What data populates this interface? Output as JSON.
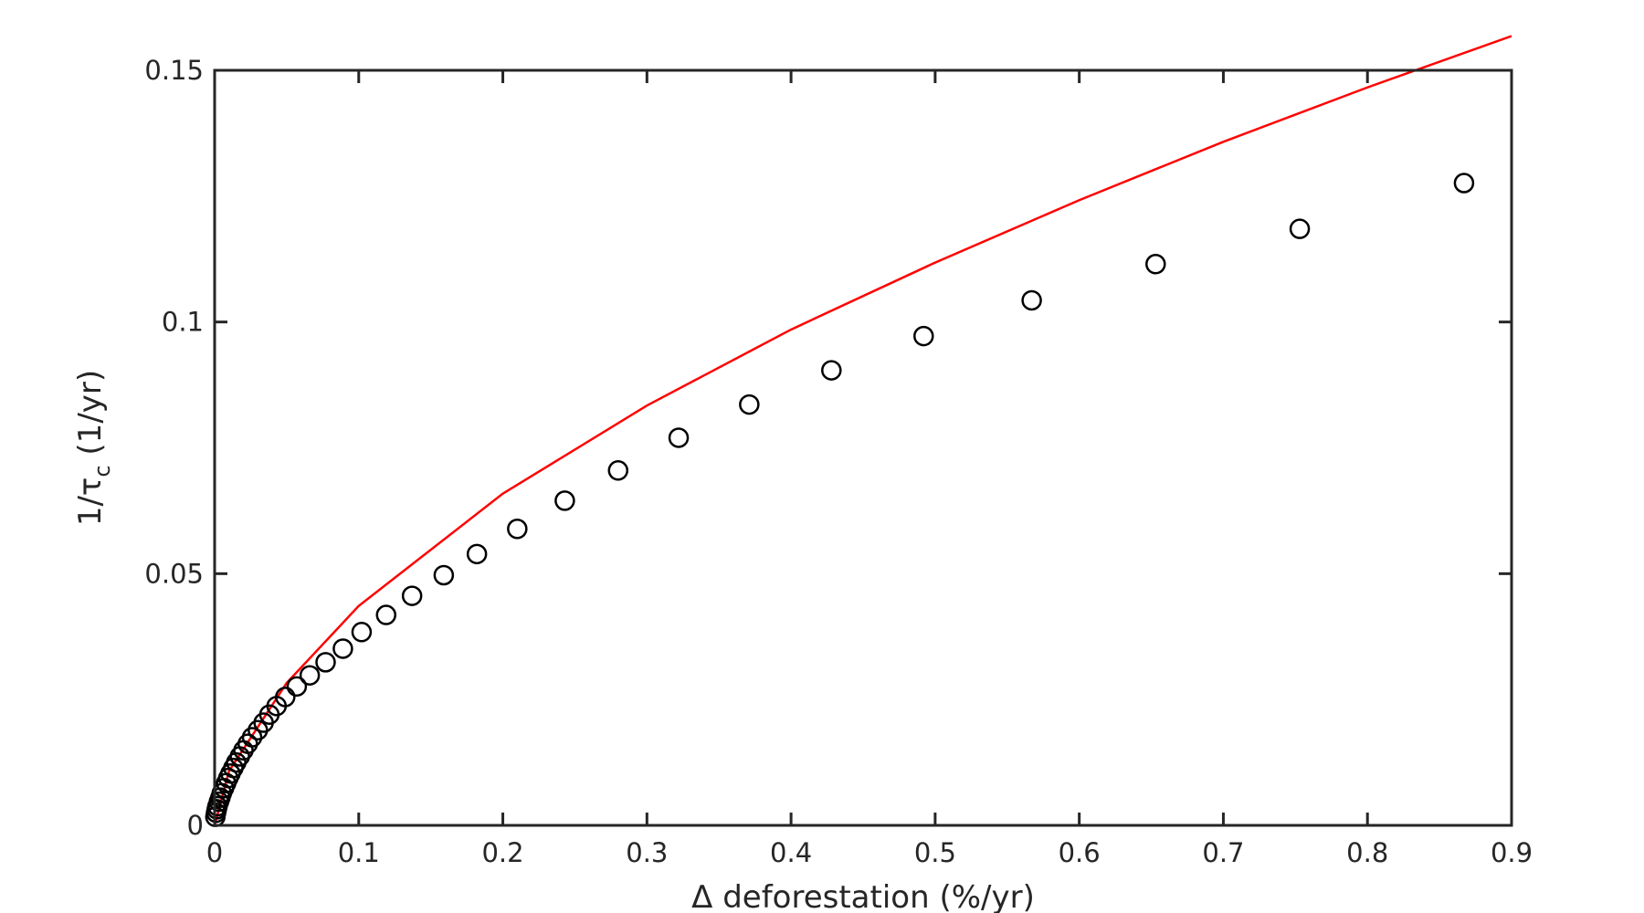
{
  "chart_data": {
    "type": "scatter",
    "title": "",
    "xlabel": "Δ deforestation (%/yr)",
    "ylabel": {
      "prefix": "1/τ",
      "subscript": "c",
      "suffix": " (1/yr)"
    },
    "xlim": [
      0,
      0.9
    ],
    "ylim": [
      0,
      0.15
    ],
    "grid": false,
    "legend": "none",
    "x_ticks": [
      {
        "value": 0,
        "label": "0"
      },
      {
        "value": 0.1,
        "label": "0.1"
      },
      {
        "value": 0.2,
        "label": "0.2"
      },
      {
        "value": 0.3,
        "label": "0.3"
      },
      {
        "value": 0.4,
        "label": "0.4"
      },
      {
        "value": 0.5,
        "label": "0.5"
      },
      {
        "value": 0.6,
        "label": "0.6"
      },
      {
        "value": 0.7,
        "label": "0.7"
      },
      {
        "value": 0.8,
        "label": "0.8"
      },
      {
        "value": 0.9,
        "label": "0.9"
      }
    ],
    "y_ticks": [
      {
        "value": 0,
        "label": "0"
      },
      {
        "value": 0.05,
        "label": "0.05"
      },
      {
        "value": 0.1,
        "label": "0.1"
      },
      {
        "value": 0.15,
        "label": "0.15"
      }
    ],
    "colors": {
      "axes": "#262626",
      "markers": "#000000",
      "fit_line": "#ff0000",
      "background": "#ffffff"
    },
    "series": [
      {
        "kind": "markers",
        "marker": "open-circle",
        "x": [
          0.0005,
          0.001,
          0.0015,
          0.002,
          0.003,
          0.004,
          0.005,
          0.0065,
          0.008,
          0.0095,
          0.011,
          0.013,
          0.015,
          0.0175,
          0.02,
          0.023,
          0.026,
          0.03,
          0.034,
          0.038,
          0.043,
          0.049,
          0.057,
          0.066,
          0.077,
          0.089,
          0.102,
          0.119,
          0.137,
          0.159,
          0.182,
          0.21,
          0.243,
          0.28,
          0.322,
          0.371,
          0.428,
          0.492,
          0.567,
          0.653,
          0.753,
          0.867
        ],
        "y": [
          0.0017,
          0.0025,
          0.0032,
          0.0038,
          0.0047,
          0.0055,
          0.0064,
          0.0074,
          0.0084,
          0.0094,
          0.0103,
          0.0114,
          0.0125,
          0.0137,
          0.0149,
          0.0162,
          0.0175,
          0.0189,
          0.0204,
          0.022,
          0.0237,
          0.0255,
          0.0276,
          0.0298,
          0.0324,
          0.0351,
          0.0384,
          0.0418,
          0.0456,
          0.0497,
          0.0539,
          0.0589,
          0.0645,
          0.0705,
          0.077,
          0.0836,
          0.0904,
          0.0972,
          0.1043,
          0.1115,
          0.1185,
          0.1276
        ]
      },
      {
        "kind": "line",
        "x": [
          0,
          0.01,
          0.05,
          0.1,
          0.2,
          0.3,
          0.4,
          0.5,
          0.6,
          0.7,
          0.8,
          0.9
        ],
        "y": [
          0.0,
          0.0108,
          0.0283,
          0.0436,
          0.0659,
          0.0834,
          0.0985,
          0.1118,
          0.1242,
          0.1358,
          0.1466,
          0.1568
        ]
      }
    ]
  }
}
